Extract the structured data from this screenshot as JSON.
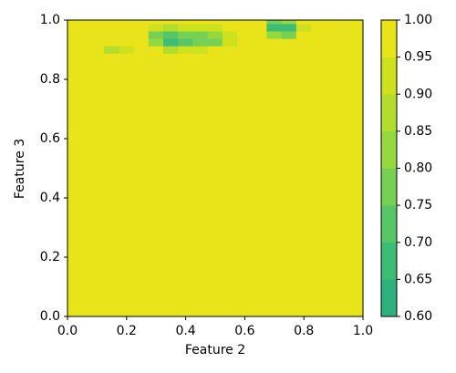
{
  "chart_data": {
    "type": "contour",
    "xlabel": "Feature 2",
    "ylabel": "Feature 3",
    "xlim": [
      0,
      1
    ],
    "ylim": [
      0,
      1
    ],
    "xticks": [
      {
        "value": 0,
        "label": "0.0"
      },
      {
        "value": 0.2,
        "label": "0.2"
      },
      {
        "value": 0.4,
        "label": "0.4"
      },
      {
        "value": 0.6,
        "label": "0.6"
      },
      {
        "value": 0.8,
        "label": "0.8"
      },
      {
        "value": 1,
        "label": "1.0"
      }
    ],
    "yticks": [
      {
        "value": 0,
        "label": "0.0"
      },
      {
        "value": 0.2,
        "label": "0.2"
      },
      {
        "value": 0.4,
        "label": "0.4"
      },
      {
        "value": 0.6,
        "label": "0.6"
      },
      {
        "value": 0.8,
        "label": "0.8"
      },
      {
        "value": 1,
        "label": "1.0"
      }
    ],
    "levels": [
      {
        "value": 0.6,
        "label": "0.60"
      },
      {
        "value": 0.65,
        "label": "0.65"
      },
      {
        "value": 0.7,
        "label": "0.70"
      },
      {
        "value": 0.75,
        "label": "0.75"
      },
      {
        "value": 0.8,
        "label": "0.80"
      },
      {
        "value": 0.85,
        "label": "0.85"
      },
      {
        "value": 0.9,
        "label": "0.90"
      },
      {
        "value": 0.95,
        "label": "0.95"
      },
      {
        "value": 1,
        "label": "1.00"
      }
    ],
    "colors": [
      "#2db27d",
      "#3dbc74",
      "#56c667",
      "#75d054",
      "#95d840",
      "#b2dd2c",
      "#cde11d",
      "#e8e419"
    ],
    "x": [
      0,
      0.05,
      0.1,
      0.15,
      0.2,
      0.25,
      0.3,
      0.35,
      0.4,
      0.45,
      0.5,
      0.55,
      0.6,
      0.65,
      0.7,
      0.75,
      0.8,
      0.85,
      0.9,
      0.95,
      1
    ],
    "y": [
      0,
      0.85,
      0.875,
      0.9,
      0.925,
      0.95,
      0.975,
      1
    ],
    "z": [
      [
        1,
        1,
        1,
        1,
        1,
        1,
        1,
        1,
        1,
        1,
        1,
        1,
        1,
        1,
        1,
        1,
        1,
        1,
        1,
        1,
        1
      ],
      [
        1,
        1,
        1,
        1,
        1,
        1,
        1,
        1,
        1,
        1,
        1,
        1,
        1,
        1,
        1,
        1,
        1,
        1,
        1,
        1,
        1
      ],
      [
        1,
        1,
        1,
        0.95,
        0.95,
        1,
        1,
        1,
        1,
        1,
        1,
        1,
        1,
        1,
        1,
        1,
        1,
        1,
        1,
        1,
        1
      ],
      [
        1,
        1,
        1,
        0.88,
        0.9,
        1,
        0.95,
        0.85,
        0.9,
        0.9,
        0.95,
        1,
        1,
        1,
        1,
        1,
        1,
        1,
        1,
        1,
        1
      ],
      [
        1,
        1,
        1,
        0.95,
        0.95,
        1,
        0.8,
        0.68,
        0.72,
        0.75,
        0.78,
        0.9,
        1,
        1,
        0.95,
        0.95,
        1,
        1,
        1,
        1,
        1
      ],
      [
        1,
        1,
        1,
        1,
        1,
        1,
        0.78,
        0.7,
        0.78,
        0.76,
        0.8,
        0.9,
        1,
        1,
        0.8,
        0.78,
        0.95,
        1,
        1,
        1,
        1
      ],
      [
        1,
        1,
        1,
        1,
        1,
        1,
        0.9,
        0.88,
        0.92,
        0.9,
        0.92,
        0.95,
        1,
        0.98,
        0.68,
        0.68,
        0.92,
        1,
        1,
        1,
        1
      ],
      [
        1,
        1,
        1,
        1,
        1,
        1,
        0.95,
        0.95,
        0.95,
        0.95,
        0.95,
        1,
        0.97,
        0.95,
        0.75,
        0.8,
        0.95,
        1,
        1,
        1,
        1
      ]
    ]
  }
}
